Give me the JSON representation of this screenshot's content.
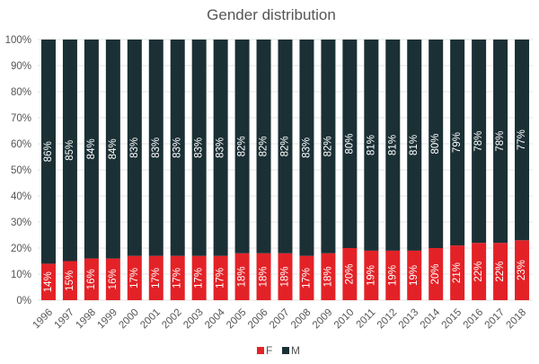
{
  "chart_data": {
    "type": "bar",
    "stacked": true,
    "title": "Gender distribution",
    "xlabel": "",
    "ylabel": "",
    "ylim": [
      0,
      100
    ],
    "y_ticks": [
      "0%",
      "10%",
      "20%",
      "30%",
      "40%",
      "50%",
      "60%",
      "70%",
      "80%",
      "90%",
      "100%"
    ],
    "grid": true,
    "legend_position": "bottom",
    "categories": [
      "1996",
      "1997",
      "1998",
      "1999",
      "2000",
      "2001",
      "2002",
      "2003",
      "2004",
      "2005",
      "2006",
      "2007",
      "2008",
      "2009",
      "2010",
      "2011",
      "2012",
      "2013",
      "2014",
      "2015",
      "2016",
      "2017",
      "2018"
    ],
    "series": [
      {
        "name": "F",
        "color": "#e32227",
        "values": [
          14,
          15,
          16,
          16,
          17,
          17,
          17,
          17,
          17,
          18,
          18,
          18,
          17,
          18,
          20,
          19,
          19,
          19,
          20,
          21,
          22,
          22,
          23
        ],
        "labels": [
          "14%",
          "15%",
          "16%",
          "16%",
          "17%",
          "17%",
          "17%",
          "17%",
          "17%",
          "18%",
          "18%",
          "18%",
          "17%",
          "18%",
          "20%",
          "19%",
          "19%",
          "19%",
          "20%",
          "21%",
          "22%",
          "22%",
          "23%"
        ]
      },
      {
        "name": "M",
        "color": "#1b3035",
        "values": [
          86,
          85,
          84,
          84,
          83,
          83,
          83,
          83,
          83,
          82,
          82,
          82,
          83,
          82,
          80,
          81,
          81,
          81,
          80,
          79,
          78,
          78,
          77
        ],
        "labels": [
          "86%",
          "85%",
          "84%",
          "84%",
          "83%",
          "83%",
          "83%",
          "83%",
          "83%",
          "82%",
          "82%",
          "82%",
          "83%",
          "82%",
          "80%",
          "81%",
          "81%",
          "81%",
          "80%",
          "79%",
          "78%",
          "78%",
          "77%"
        ]
      }
    ]
  }
}
